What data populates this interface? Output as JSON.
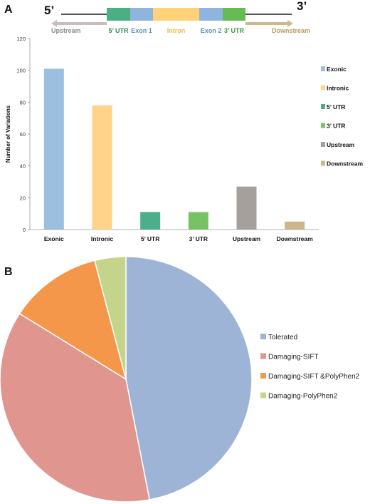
{
  "panel_a": {
    "letter": "A",
    "five_prime": "5’",
    "three_prime": "3’",
    "gene_segments": [
      {
        "label": "Upstream",
        "color": "#c8bcbc",
        "label_color": "#8a8a8a",
        "kind": "arrow-left"
      },
      {
        "label": "5’ UTR",
        "color": "#4caf84",
        "label_color": "#2e8b57",
        "kind": "box"
      },
      {
        "label": "Exon 1",
        "color": "#8fb4dd",
        "label_color": "#5b8ec7",
        "kind": "box"
      },
      {
        "label": "Intron",
        "color": "#ffd27a",
        "label_color": "#f5b942",
        "kind": "box"
      },
      {
        "label": "Exon 2",
        "color": "#8fb4dd",
        "label_color": "#5b8ec7",
        "kind": "box"
      },
      {
        "label": "3’ UTR",
        "color": "#66bb55",
        "label_color": "#3a9a3a",
        "kind": "box"
      },
      {
        "label": "Downstream",
        "color": "#cfb98c",
        "label_color": "#b89a5e",
        "kind": "arrow-right"
      }
    ]
  },
  "panel_b": {
    "letter": "B"
  },
  "chart_data": [
    {
      "type": "bar",
      "ylabel": "Number of Variations",
      "ylim": [
        0,
        120
      ],
      "yticks": [
        0,
        20,
        40,
        60,
        80,
        100,
        120
      ],
      "grid": false,
      "legend_position": "right",
      "categories": [
        "Exonic",
        "Intronic",
        "5’ UTR",
        "3’ UTR",
        "Upstream",
        "Downstream"
      ],
      "values": [
        101,
        78,
        11,
        11,
        27,
        5
      ],
      "colors": [
        "#9dbfdf",
        "#ffd48a",
        "#4aaf8a",
        "#78c266",
        "#a6a09c",
        "#cdb68b"
      ],
      "legend": [
        "Exonic",
        "Intronic",
        "5’ UTR",
        "3’ UTR",
        "Upstream",
        "Downstream"
      ]
    },
    {
      "type": "pie",
      "legend_position": "right",
      "labels": [
        "Tolerated",
        "Damaging-SIFT",
        "Damaging-SIFT &PolyPhen2",
        "Damaging-PolyPhen2"
      ],
      "values": [
        47,
        37,
        12,
        4
      ],
      "colors": [
        "#9db4d6",
        "#e0968e",
        "#f5974a",
        "#c4d48a"
      ]
    }
  ]
}
